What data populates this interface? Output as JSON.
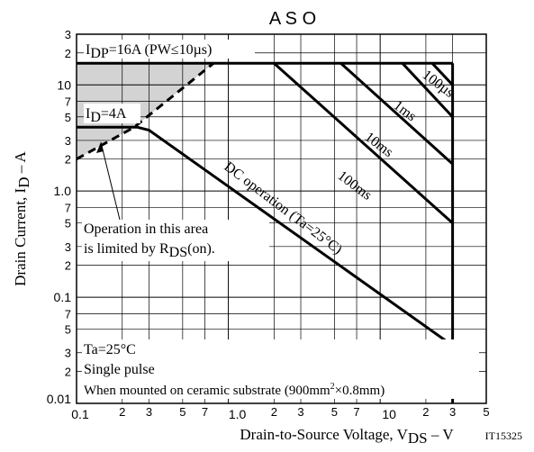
{
  "chart_data": {
    "type": "line",
    "title": "A S O",
    "xlabel": {
      "prefix": "Drain-to-Source Voltage, V",
      "sub": "DS",
      "suffix": " – V"
    },
    "ylabel": {
      "prefix": "Drain Current, I",
      "sub": "D",
      "suffix": " – A"
    },
    "figure_id": "IT15325",
    "x_scale": "log",
    "y_scale": "log",
    "xlim": [
      0.1,
      50
    ],
    "ylim": [
      0.01,
      30
    ],
    "grid": true,
    "x_major_ticks": [
      {
        "v": 0.1,
        "label": "0.1"
      },
      {
        "v": 1,
        "label": "1.0"
      },
      {
        "v": 10,
        "label": "10"
      }
    ],
    "x_minor_ticks": [
      {
        "v": 0.2,
        "label": "2"
      },
      {
        "v": 0.3,
        "label": "3"
      },
      {
        "v": 0.5,
        "label": "5"
      },
      {
        "v": 0.7,
        "label": "7"
      },
      {
        "v": 2,
        "label": "2"
      },
      {
        "v": 3,
        "label": "3"
      },
      {
        "v": 5,
        "label": "5"
      },
      {
        "v": 7,
        "label": "7"
      },
      {
        "v": 20,
        "label": "2"
      },
      {
        "v": 30,
        "label": "3"
      },
      {
        "v": 50,
        "label": "5"
      }
    ],
    "y_major_ticks": [
      {
        "v": 0.01,
        "label": "0.01"
      },
      {
        "v": 0.1,
        "label": "0.1"
      },
      {
        "v": 1,
        "label": "1.0"
      },
      {
        "v": 10,
        "label": "10"
      }
    ],
    "y_minor_ticks": [
      {
        "v": 0.02,
        "label": "2"
      },
      {
        "v": 0.03,
        "label": "3"
      },
      {
        "v": 0.05,
        "label": "5"
      },
      {
        "v": 0.07,
        "label": "7"
      },
      {
        "v": 0.2,
        "label": "2"
      },
      {
        "v": 0.3,
        "label": "3"
      },
      {
        "v": 0.5,
        "label": "5"
      },
      {
        "v": 0.7,
        "label": "7"
      },
      {
        "v": 2,
        "label": "2"
      },
      {
        "v": 3,
        "label": "3"
      },
      {
        "v": 5,
        "label": "5"
      },
      {
        "v": 7,
        "label": "7"
      },
      {
        "v": 20,
        "label": "2"
      },
      {
        "v": 30,
        "label": "3"
      }
    ],
    "series": [
      {
        "key": "idp_limit",
        "style": "solid",
        "points": [
          [
            0.1,
            16
          ],
          [
            30,
            16
          ]
        ]
      },
      {
        "key": "vdss_limit",
        "style": "solid",
        "points": [
          [
            30,
            16
          ],
          [
            30,
            0.01
          ]
        ]
      },
      {
        "key": "rds_on_limit",
        "style": "dashed",
        "points": [
          [
            0.1,
            2
          ],
          [
            0.24,
            4
          ],
          [
            0.8,
            16
          ]
        ]
      },
      {
        "key": "id_limit",
        "style": "solid",
        "points": [
          [
            0.1,
            4
          ],
          [
            0.25,
            4
          ]
        ]
      },
      {
        "key": "dc",
        "style": "solid",
        "points": [
          [
            0.25,
            4
          ],
          [
            0.3,
            3.75
          ],
          [
            30,
            0.035
          ]
        ]
      },
      {
        "key": "100ms",
        "style": "solid",
        "points": [
          [
            2,
            16
          ],
          [
            30,
            0.5
          ]
        ]
      },
      {
        "key": "10ms",
        "style": "solid",
        "points": [
          [
            5.5,
            16
          ],
          [
            30,
            1.8
          ]
        ]
      },
      {
        "key": "1ms",
        "style": "solid",
        "points": [
          [
            14,
            16
          ],
          [
            30,
            5
          ]
        ]
      },
      {
        "key": "100us",
        "style": "solid",
        "points": [
          [
            22,
            16
          ],
          [
            30,
            10
          ]
        ]
      }
    ],
    "shaded_regions": [
      {
        "key": "rds_on_area",
        "points": [
          [
            0.1,
            16
          ],
          [
            0.8,
            16
          ],
          [
            0.24,
            4
          ],
          [
            0.1,
            2
          ]
        ]
      }
    ],
    "annotations": {
      "idp": {
        "prefix": "I",
        "sub": "DP",
        "suffix": "=16A (PW≤10µs)"
      },
      "id": {
        "prefix": "I",
        "sub": "D",
        "suffix": "=4A"
      },
      "us100": "100µs",
      "ms1": "1ms",
      "ms10": "10ms",
      "ms100": "100ms",
      "dc": "DC operation (Ta=25°C)",
      "rds_line1": "Operation in this area",
      "rds_line2": {
        "prefix": "is limited by R",
        "sub": "DS",
        "suffix": "(on)."
      },
      "cond_ta": "Ta=25°C",
      "cond_pulse": "Single pulse",
      "cond_mount": {
        "prefix": "When mounted on ceramic substrate (900mm",
        "sup": "2",
        "suffix": "×0.8mm)"
      }
    }
  }
}
